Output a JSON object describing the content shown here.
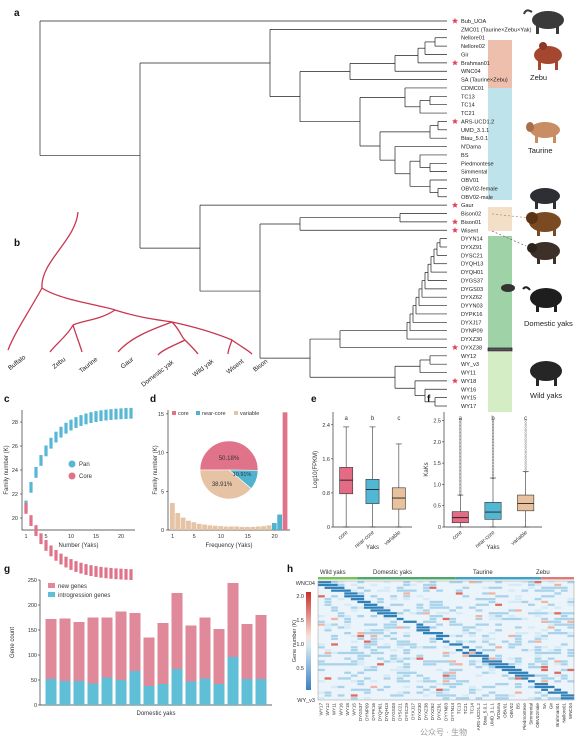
{
  "panels": {
    "a": "a",
    "b": "b",
    "c": "c",
    "d": "d",
    "e": "e",
    "f": "f",
    "g": "g",
    "h": "h"
  },
  "tree_a": {
    "leaves": [
      "Bub_UOA",
      "ZMC01 (Taurine×Zebu×Yak)",
      "Nellore01",
      "Nellore02",
      "Gir",
      "Brahman01",
      "WNC04",
      "SA (Taurine×Zebu)",
      "CDMC01",
      "TC13",
      "TC14",
      "TC21",
      "ARS-UCD1.2",
      "UMD_3.1.1",
      "Btau_5.0.1",
      "N'Dama",
      "BS",
      "Piedmontese",
      "Simmental",
      "OBV01",
      "OBV02-female",
      "OBV02-male",
      "Gaur",
      "Bison02",
      "Bison01",
      "Wisent",
      "DYYN14",
      "DYXZ91",
      "DYSC21",
      "DYQH13",
      "DYQH01",
      "DYGS37",
      "DYGS03",
      "DYXZ62",
      "DYYN03",
      "DYPK16",
      "DYXJ17",
      "DYNP09",
      "DYXZ30",
      "DYXZ38",
      "WY12",
      "WY_v3",
      "WY11",
      "WY18",
      "WY16",
      "WY15",
      "WY17"
    ],
    "starred": [
      0,
      5,
      12,
      22,
      24,
      25,
      39,
      43
    ],
    "groups": [
      "Zebu",
      "Taurine",
      "Domestic yaks",
      "Wild yaks"
    ],
    "colors": {
      "zebu": "#efbfae",
      "taurine": "#bfe3ea",
      "bison": "#f3dfc7",
      "domestic": "#9fd2a7",
      "wild": "#d4edc4",
      "star": "#e2445f"
    }
  },
  "tree_b": {
    "labels": [
      "Buffalo",
      "Zebu",
      "Taurine",
      "Gaur",
      "Domestic yak",
      "Wild yak",
      "Wisent",
      "Bison"
    ]
  },
  "panel_c": {
    "ylabel": "Family number (K)",
    "xlabel": "Number (Yaks)",
    "legend": [
      "Pan",
      "Core"
    ],
    "yticks": [
      "20",
      "22",
      "24",
      "26",
      "28"
    ],
    "xticks": [
      "1",
      "5",
      "10",
      "15",
      "20"
    ],
    "colors": {
      "pan": "#56b8d4",
      "core": "#e0738a"
    }
  },
  "panel_d": {
    "ylabel": "Family number (K)",
    "xlabel": "Frequency (Yaks)",
    "legend": [
      "core",
      "near-core",
      "variable"
    ],
    "pie": [
      "50.18%",
      "10.91%",
      "38.91%"
    ],
    "yticks": [
      "0",
      "5",
      "10",
      "15"
    ],
    "xticks": [
      "1",
      "5",
      "10",
      "15",
      "20"
    ],
    "colors": {
      "core": "#e0738a",
      "near": "#4fb3cf",
      "variable": "#e6c3a4"
    }
  },
  "panel_e": {
    "ylabel": "Log10(FPKM)",
    "xlabel": "Yaks",
    "cats": [
      "core",
      "near-core",
      "variable"
    ],
    "letters": [
      "a",
      "b",
      "c"
    ],
    "yticks": [
      "0",
      "0.8",
      "1.6",
      "2.4"
    ]
  },
  "panel_f": {
    "ylabel": "KaKs",
    "xlabel": "Yaks",
    "cats": [
      "core",
      "near-core",
      "variable"
    ],
    "letters": [
      "a",
      "b",
      "c"
    ],
    "yticks": [
      "0",
      "0.5",
      "1.0",
      "1.5",
      "2.0",
      "2.5"
    ]
  },
  "panel_g": {
    "ylabel": "Gene count",
    "xlabel": "Domestic yaks",
    "legend": [
      "new genes",
      "introgression genes"
    ],
    "yticks": [
      "0",
      "50",
      "100",
      "150",
      "200",
      "250"
    ],
    "chart_data": {
      "type": "bar",
      "stacked": true,
      "ylim": [
        0,
        250
      ],
      "series": [
        {
          "name": "new genes",
          "values": [
            120,
            125,
            118,
            132,
            120,
            137,
            116,
            97,
            122,
            152,
            112,
            122,
            110,
            148,
            110,
            128
          ]
        },
        {
          "name": "introgression genes",
          "values": [
            52,
            48,
            48,
            43,
            55,
            50,
            68,
            38,
            42,
            72,
            47,
            53,
            42,
            96,
            52,
            52
          ]
        }
      ],
      "colors": [
        "#e0899a",
        "#5fbfd6"
      ]
    }
  },
  "panel_h": {
    "groups": [
      "Wild yaks",
      "Domestic yaks",
      "Taurine",
      "Zebu"
    ],
    "row_top": "WNC04",
    "row_bottom": "WY_v3",
    "legend_label": "Gene number (K)",
    "legend_ticks": [
      "2.0",
      "1.5",
      "1.0",
      "0.5"
    ],
    "cols": [
      "WY17",
      "WY12",
      "WY11",
      "WY16",
      "WY18",
      "WY15",
      "DYGS37",
      "DYNP09",
      "DYPK16",
      "DYQH01",
      "DYQH13",
      "DYGS03",
      "DYSC21",
      "DYSC29",
      "DYXJ17",
      "DYXZ30",
      "DYXZ38",
      "DYXZ62",
      "DYXZ91",
      "DYYN03",
      "DYYN14",
      "TC13",
      "TC21",
      "TC14",
      "ARS-UCD1.2",
      "Btau_5.0.1",
      "UMD_3.1.1",
      "N'Dama",
      "OBV01",
      "OBV02",
      "BS",
      "Piedmontese",
      "Simmental",
      "OBV02male",
      "SA",
      "Gir",
      "Brahman01",
      "Nellore01",
      "WNC04"
    ]
  },
  "watermark": "公众号 · 生物"
}
